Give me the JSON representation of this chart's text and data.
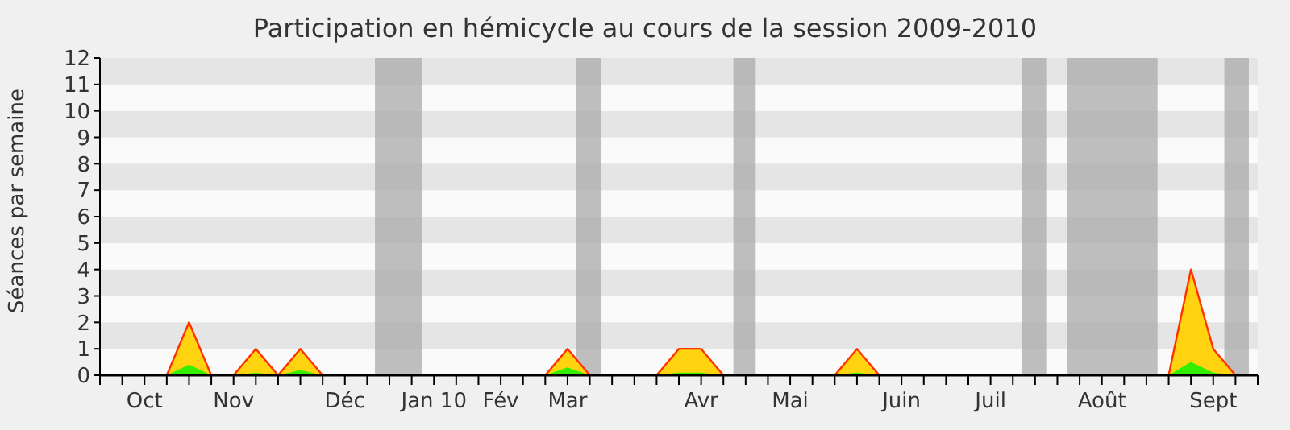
{
  "chart_data": {
    "type": "area",
    "title": "Participation en hémicycle au cours de la session 2009-2010",
    "ylabel": "Séances par semaine",
    "categories": [
      null,
      null,
      "Oct",
      null,
      null,
      null,
      "Nov",
      null,
      null,
      null,
      null,
      "Déc",
      null,
      null,
      null,
      "Jan 10",
      null,
      null,
      "Fév",
      null,
      null,
      "Mar",
      null,
      null,
      null,
      null,
      null,
      "Avr",
      null,
      null,
      null,
      "Mai",
      null,
      null,
      null,
      null,
      "Juin",
      null,
      null,
      null,
      "Juil",
      null,
      null,
      null,
      null,
      "Août",
      null,
      null,
      null,
      null,
      "Sept",
      null,
      null
    ],
    "series": [
      {
        "color": "#ffd30f",
        "values": [
          0,
          0,
          0,
          0,
          2,
          0,
          0,
          1,
          0,
          1,
          0,
          0,
          0,
          0,
          0,
          0,
          0,
          0,
          0,
          0,
          0,
          1,
          0,
          0,
          0,
          0,
          1,
          1,
          0,
          0,
          0,
          0,
          0,
          0,
          1,
          0,
          0,
          0,
          0,
          0,
          0,
          0,
          0,
          0,
          0,
          0,
          0,
          0,
          0,
          4,
          1,
          0,
          null
        ]
      },
      {
        "color": "#33ee00",
        "values": [
          0,
          0,
          0,
          0,
          0.4,
          0,
          0,
          0.1,
          0,
          0.2,
          0,
          0,
          0,
          0,
          0,
          0,
          0,
          0,
          0,
          0,
          0,
          0.3,
          0,
          0,
          0,
          0,
          0.1,
          0.1,
          0,
          0,
          0,
          0,
          0,
          0,
          0.1,
          0,
          0,
          0,
          0,
          0,
          0,
          0,
          0,
          0,
          0,
          0,
          0,
          0,
          0,
          0.5,
          0.1,
          0,
          null
        ]
      }
    ],
    "ylim": [
      0,
      12
    ],
    "yticks": [
      0,
      1,
      2,
      3,
      4,
      5,
      6,
      7,
      8,
      9,
      10,
      11,
      12
    ],
    "legend": false
  }
}
